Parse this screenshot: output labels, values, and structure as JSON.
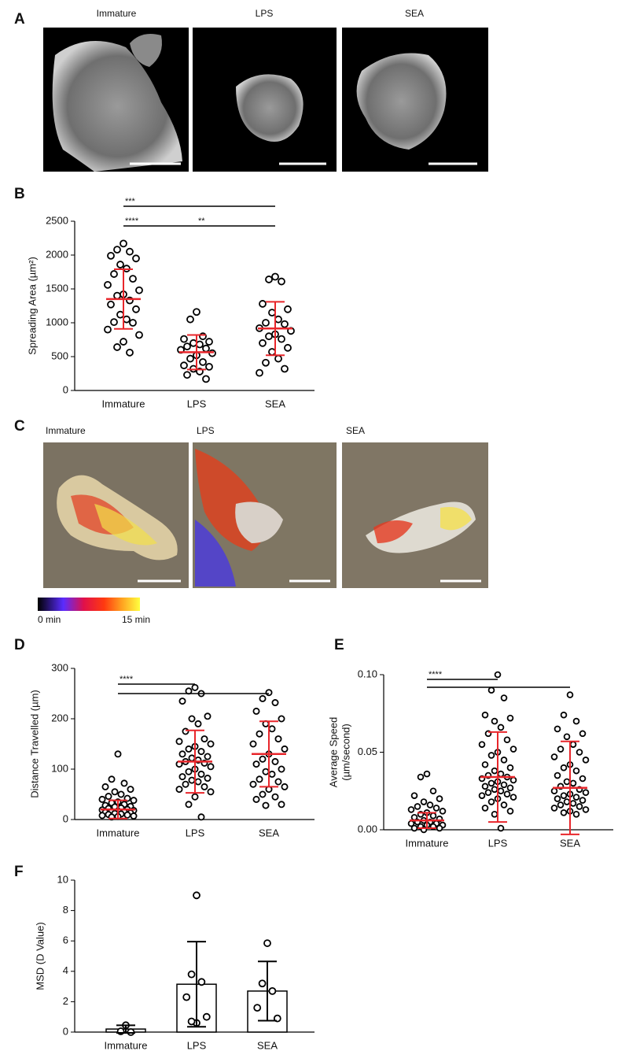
{
  "panels": {
    "A": {
      "label": "A",
      "titles": [
        "Immature",
        "LPS",
        "SEA"
      ]
    },
    "C": {
      "label": "C",
      "titles": [
        "Immature",
        "LPS",
        "SEA"
      ],
      "colorbar": [
        "0 min",
        "15 min"
      ]
    }
  },
  "chart_data": [
    {
      "type": "dotplot",
      "panel": "B",
      "ylabel": "Spreading Area (µm²)",
      "categories": [
        "Immature",
        "LPS",
        "SEA"
      ],
      "points": [
        [
          2170,
          2080,
          2050,
          1990,
          1950,
          1860,
          1800,
          1720,
          1650,
          1560,
          1480,
          1420,
          1400,
          1330,
          1270,
          1200,
          1120,
          1050,
          1010,
          1000,
          900,
          820,
          720,
          640,
          560
        ],
        [
          1160,
          1050,
          800,
          760,
          720,
          700,
          680,
          650,
          620,
          600,
          550,
          520,
          470,
          420,
          370,
          350,
          320,
          280,
          230,
          170
        ],
        [
          1680,
          1640,
          1610,
          1280,
          1200,
          1150,
          1050,
          1000,
          980,
          920,
          880,
          830,
          800,
          760,
          700,
          630,
          570,
          470,
          410,
          320,
          260
        ]
      ],
      "mean": [
        1350,
        565,
        915
      ],
      "errors": [
        440,
        255,
        395
      ],
      "ylim": [
        0,
        2500
      ],
      "yticks": [
        0,
        500,
        1000,
        1500,
        2000,
        2500
      ],
      "marker_color": "#000000",
      "summary_color": "#e8262b",
      "significance": [
        {
          "label": "***",
          "between": [
            "Immature",
            "SEA"
          ]
        },
        {
          "label": "****",
          "between": [
            "Immature",
            "LPS"
          ]
        },
        {
          "label": "**",
          "between": [
            "LPS",
            "SEA"
          ]
        }
      ]
    },
    {
      "type": "dotplot",
      "panel": "D",
      "ylabel": "Distance Travelled (µm)",
      "categories": [
        "Immature",
        "LPS",
        "SEA"
      ],
      "points": [
        [
          130,
          80,
          72,
          65,
          60,
          55,
          50,
          46,
          42,
          40,
          38,
          35,
          33,
          30,
          28,
          26,
          25,
          23,
          22,
          20,
          19,
          18,
          17,
          16,
          15,
          14,
          13,
          12,
          11,
          10,
          9,
          8,
          7,
          6,
          5
        ],
        [
          262,
          255,
          250,
          235,
          205,
          200,
          190,
          175,
          160,
          155,
          150,
          145,
          140,
          135,
          130,
          125,
          122,
          118,
          115,
          112,
          110,
          105,
          100,
          95,
          90,
          85,
          82,
          78,
          75,
          70,
          65,
          60,
          55,
          45,
          30,
          5
        ],
        [
          252,
          240,
          232,
          215,
          200,
          190,
          180,
          170,
          160,
          150,
          140,
          130,
          120,
          115,
          110,
          100,
          95,
          90,
          80,
          75,
          70,
          65,
          60,
          50,
          45,
          40,
          30,
          28
        ]
      ],
      "mean": [
        20,
        115,
        130
      ],
      "errors": [
        18,
        62,
        65
      ],
      "ylim": [
        0,
        300
      ],
      "yticks": [
        0,
        100,
        200,
        300
      ],
      "marker_color": "#000000",
      "summary_color": "#e8262b",
      "significance": [
        {
          "label": "****",
          "between": [
            "Immature",
            "LPS"
          ]
        },
        {
          "between": [
            "Immature",
            "SEA"
          ]
        }
      ]
    },
    {
      "type": "dotplot",
      "panel": "E",
      "ylabel": [
        "Average Speed",
        "(µm/second)"
      ],
      "categories": [
        "Immature",
        "LPS",
        "SEA"
      ],
      "points": [
        [
          0.036,
          0.034,
          0.025,
          0.022,
          0.02,
          0.018,
          0.016,
          0.015,
          0.014,
          0.013,
          0.012,
          0.011,
          0.01,
          0.009,
          0.008,
          0.007,
          0.006,
          0.005,
          0.005,
          0.004,
          0.004,
          0.003,
          0.003,
          0.002,
          0.002,
          0.001,
          0.001,
          0.0
        ],
        [
          0.1,
          0.09,
          0.085,
          0.074,
          0.072,
          0.07,
          0.066,
          0.062,
          0.058,
          0.055,
          0.052,
          0.05,
          0.048,
          0.045,
          0.042,
          0.04,
          0.038,
          0.036,
          0.035,
          0.034,
          0.033,
          0.032,
          0.031,
          0.03,
          0.029,
          0.028,
          0.027,
          0.026,
          0.025,
          0.024,
          0.023,
          0.022,
          0.021,
          0.02,
          0.018,
          0.016,
          0.014,
          0.012,
          0.01,
          0.001
        ],
        [
          0.087,
          0.074,
          0.07,
          0.065,
          0.062,
          0.06,
          0.055,
          0.052,
          0.05,
          0.047,
          0.045,
          0.042,
          0.04,
          0.038,
          0.035,
          0.033,
          0.031,
          0.03,
          0.028,
          0.026,
          0.025,
          0.024,
          0.023,
          0.022,
          0.021,
          0.02,
          0.019,
          0.018,
          0.017,
          0.016,
          0.015,
          0.014,
          0.013,
          0.012,
          0.011,
          0.01
        ]
      ],
      "mean": [
        0.006,
        0.034,
        0.027
      ],
      "errors": [
        0.005,
        0.029,
        0.03
      ],
      "ylim": [
        0,
        0.1
      ],
      "yticks": [
        {
          "value": 0,
          "label": "0.00"
        },
        {
          "value": 0.05,
          "label": "0.05"
        },
        {
          "value": 0.1,
          "label": "0.10"
        }
      ],
      "marker_color": "#000000",
      "summary_color": "#e8262b",
      "significance": [
        {
          "label": "****",
          "between": [
            "Immature",
            "LPS"
          ]
        },
        {
          "between": [
            "Immature",
            "SEA"
          ]
        }
      ]
    },
    {
      "type": "bar",
      "panel": "F",
      "ylabel": "MSD (D Value)",
      "categories": [
        "Immature",
        "LPS",
        "SEA"
      ],
      "points": [
        [
          0.45,
          0.05,
          0.0
        ],
        [
          9.0,
          3.8,
          3.3,
          2.3,
          1.0,
          0.6,
          0.7
        ],
        [
          5.85,
          3.2,
          2.7,
          1.6,
          0.9
        ]
      ],
      "mean": [
        0.2,
        3.15,
        2.7
      ],
      "errors": [
        0.25,
        2.8,
        1.95
      ],
      "ylim": [
        0,
        10
      ],
      "yticks": [
        0,
        2,
        4,
        6,
        8,
        10
      ],
      "marker_color": "#000000",
      "summary_color": "#000000",
      "bar_color": "#ffffff"
    }
  ]
}
